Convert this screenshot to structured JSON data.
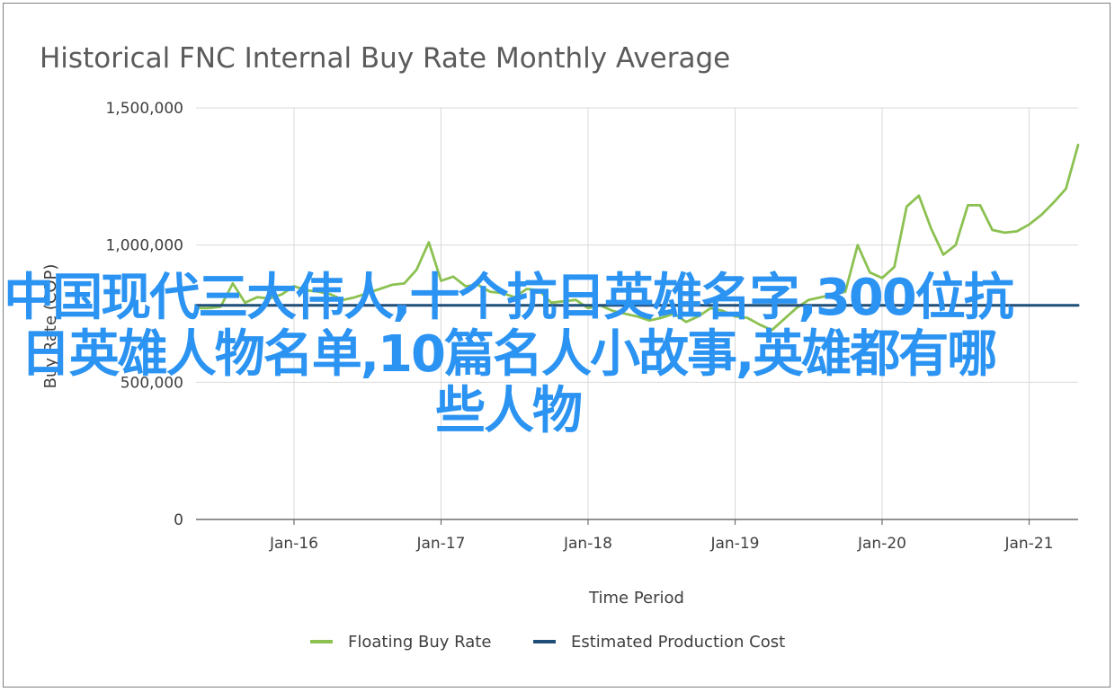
{
  "chart_data": {
    "type": "line",
    "title": "Historical FNC Internal Buy Rate Monthly Average",
    "xlabel": "Time Period",
    "ylabel": "Buy Rate (COP)",
    "ylim": [
      0,
      1500000
    ],
    "y_ticks": [
      "0",
      "500,000",
      "1,000,000",
      "1,500,000"
    ],
    "y_tick_values": [
      0,
      500000,
      1000000,
      1500000
    ],
    "x_range": [
      "2015-05",
      "2021-05"
    ],
    "x_ticks": [
      "Jan-16",
      "Jan-17",
      "Jan-18",
      "Jan-19",
      "Jan-20",
      "Jan-21"
    ],
    "x_tick_dates": [
      "2016-01",
      "2017-01",
      "2018-01",
      "2019-01",
      "2020-01",
      "2021-01"
    ],
    "grid": "vertical",
    "legend_position": "bottom",
    "colors": {
      "floating": "#8cc152",
      "cost": "#1f4e79"
    },
    "series": [
      {
        "name": "Floating Buy Rate",
        "color": "#8cc152",
        "points": [
          [
            "2015-05",
            770000
          ],
          [
            "2015-06",
            770000
          ],
          [
            "2015-07",
            775000
          ],
          [
            "2015-08",
            860000
          ],
          [
            "2015-09",
            790000
          ],
          [
            "2015-10",
            810000
          ],
          [
            "2015-11",
            805000
          ],
          [
            "2015-12",
            820000
          ],
          [
            "2016-01",
            850000
          ],
          [
            "2016-02",
            835000
          ],
          [
            "2016-03",
            830000
          ],
          [
            "2016-04",
            820000
          ],
          [
            "2016-05",
            800000
          ],
          [
            "2016-06",
            810000
          ],
          [
            "2016-07",
            825000
          ],
          [
            "2016-08",
            840000
          ],
          [
            "2016-09",
            855000
          ],
          [
            "2016-10",
            860000
          ],
          [
            "2016-11",
            910000
          ],
          [
            "2016-12",
            1010000
          ],
          [
            "2017-01",
            870000
          ],
          [
            "2017-02",
            885000
          ],
          [
            "2017-03",
            850000
          ],
          [
            "2017-04",
            855000
          ],
          [
            "2017-05",
            830000
          ],
          [
            "2017-06",
            825000
          ],
          [
            "2017-07",
            810000
          ],
          [
            "2017-08",
            840000
          ],
          [
            "2017-09",
            835000
          ],
          [
            "2017-10",
            790000
          ],
          [
            "2017-11",
            795000
          ],
          [
            "2017-12",
            800000
          ],
          [
            "2018-01",
            770000
          ],
          [
            "2018-02",
            780000
          ],
          [
            "2018-03",
            760000
          ],
          [
            "2018-04",
            750000
          ],
          [
            "2018-05",
            740000
          ],
          [
            "2018-06",
            725000
          ],
          [
            "2018-07",
            735000
          ],
          [
            "2018-08",
            750000
          ],
          [
            "2018-09",
            720000
          ],
          [
            "2018-10",
            740000
          ],
          [
            "2018-11",
            770000
          ],
          [
            "2018-12",
            760000
          ],
          [
            "2019-01",
            740000
          ],
          [
            "2019-02",
            735000
          ],
          [
            "2019-03",
            710000
          ],
          [
            "2019-04",
            690000
          ],
          [
            "2019-05",
            730000
          ],
          [
            "2019-06",
            770000
          ],
          [
            "2019-07",
            800000
          ],
          [
            "2019-08",
            810000
          ],
          [
            "2019-09",
            820000
          ],
          [
            "2019-10",
            830000
          ],
          [
            "2019-11",
            1000000
          ],
          [
            "2019-12",
            900000
          ],
          [
            "2020-01",
            880000
          ],
          [
            "2020-02",
            920000
          ],
          [
            "2020-03",
            1140000
          ],
          [
            "2020-04",
            1180000
          ],
          [
            "2020-05",
            1060000
          ],
          [
            "2020-06",
            965000
          ],
          [
            "2020-07",
            1000000
          ],
          [
            "2020-08",
            1145000
          ],
          [
            "2020-09",
            1145000
          ],
          [
            "2020-10",
            1055000
          ],
          [
            "2020-11",
            1045000
          ],
          [
            "2020-12",
            1050000
          ],
          [
            "2021-01",
            1075000
          ],
          [
            "2021-02",
            1110000
          ],
          [
            "2021-03",
            1155000
          ],
          [
            "2021-04",
            1205000
          ],
          [
            "2021-05",
            1365000
          ]
        ]
      },
      {
        "name": "Estimated Production Cost",
        "color": "#1f4e79",
        "points": [
          [
            "2015-05",
            780000
          ],
          [
            "2021-05",
            780000
          ]
        ]
      }
    ]
  },
  "overlay_text": "中国现代三大伟人,十个抗日英雄名字,300位抗日英雄人物名单,10篇名人小故事,英雄都有哪些人物"
}
